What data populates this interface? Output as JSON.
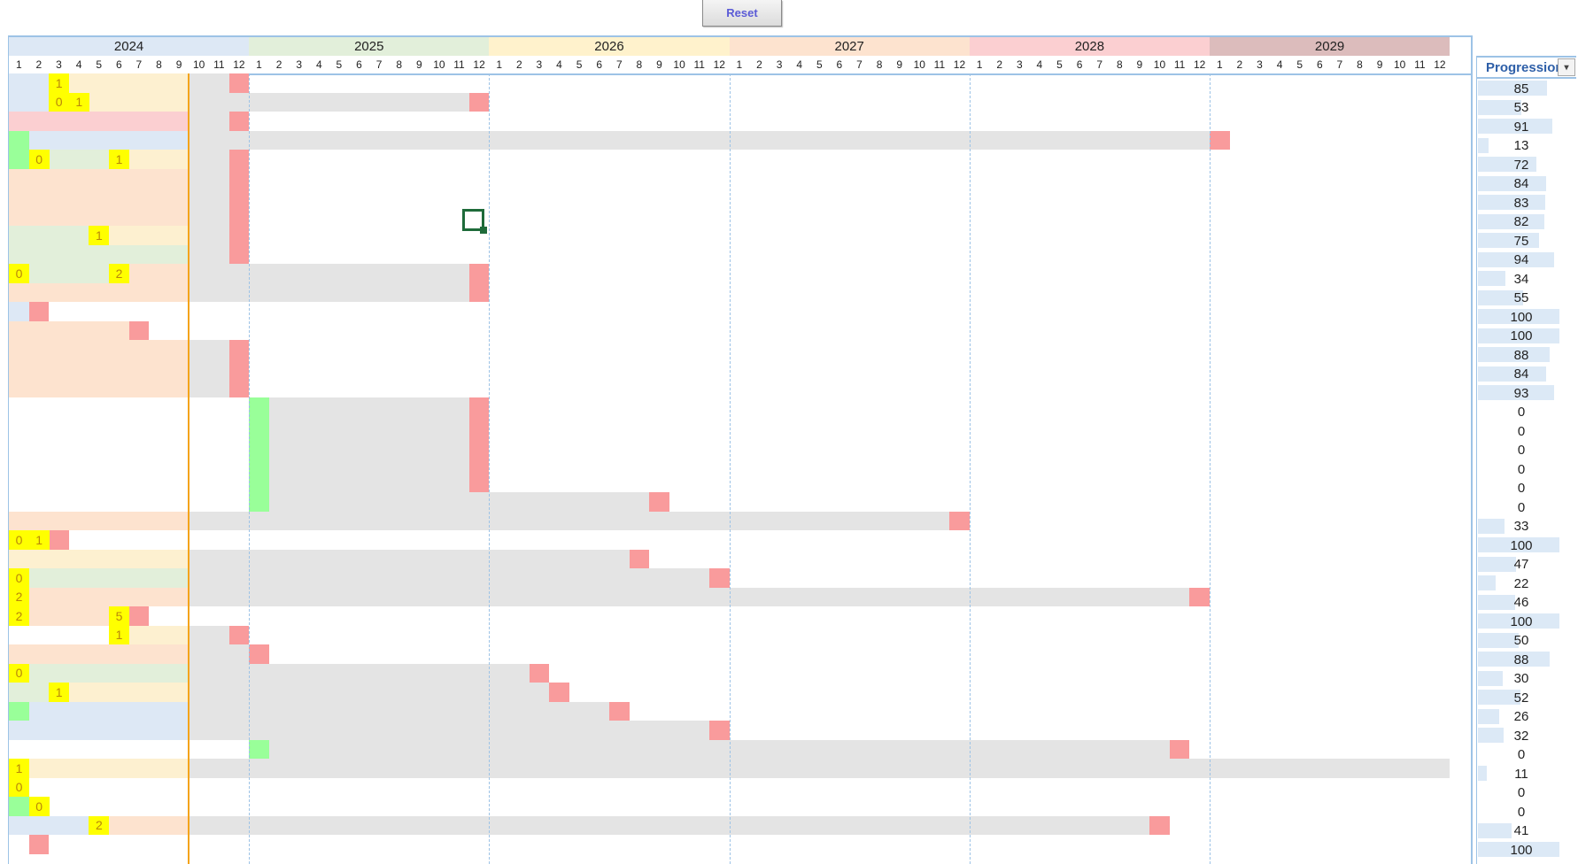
{
  "toolbar": {
    "reset_label": "Reset"
  },
  "colors": {
    "row_blue": "#dde8f5",
    "row_yellow": "#fdf0d0",
    "row_pink": "#fbcfd1",
    "row_green": "#e2efda",
    "row_orange": "#fde3cf",
    "gray": "#e4e4e4",
    "red": "#f99b9c",
    "lime": "#99ff99",
    "yellow": "#ffff00",
    "today": "#f4a41b"
  },
  "years": [
    {
      "label": "2024",
      "color": "#dde8f5"
    },
    {
      "label": "2025",
      "color": "#e2efda"
    },
    {
      "label": "2026",
      "color": "#fff2cc"
    },
    {
      "label": "2027",
      "color": "#fde3cf"
    },
    {
      "label": "2028",
      "color": "#fbcfd1"
    },
    {
      "label": "2029",
      "color": "#dcbcbc"
    }
  ],
  "months": [
    "1",
    "2",
    "3",
    "4",
    "5",
    "6",
    "7",
    "8",
    "9",
    "10",
    "11",
    "12"
  ],
  "today_month": 9,
  "progress_header": "Progression",
  "filter_icon": "▾",
  "rows": [
    {
      "progress": 85,
      "segs": [
        [
          "blue",
          0,
          2
        ],
        [
          "yellow",
          2,
          9
        ]
      ],
      "gray": [
        9,
        11
      ],
      "red": 11,
      "marks": [
        [
          2,
          "1"
        ]
      ]
    },
    {
      "progress": 53,
      "segs": [
        [
          "blue",
          0,
          2
        ],
        [
          "yellow",
          2,
          9
        ]
      ],
      "gray": [
        9,
        23
      ],
      "red": 23,
      "marks": [
        [
          2,
          "0"
        ],
        [
          3,
          "1"
        ]
      ]
    },
    {
      "progress": 91,
      "segs": [
        [
          "pink",
          0,
          9
        ]
      ],
      "gray": [
        9,
        11
      ],
      "red": 11,
      "marks": []
    },
    {
      "progress": 13,
      "segs": [
        [
          "lime",
          0,
          1
        ],
        [
          "blue",
          1,
          9
        ]
      ],
      "gray": [
        9,
        60
      ],
      "red": 60,
      "marks": []
    },
    {
      "progress": 72,
      "segs": [
        [
          "lime",
          0,
          1
        ],
        [
          "green",
          1,
          5
        ],
        [
          "yellow",
          5,
          9
        ]
      ],
      "gray": [
        9,
        11
      ],
      "red": 11,
      "marks": [
        [
          1,
          "0"
        ],
        [
          5,
          "1"
        ]
      ]
    },
    {
      "progress": 84,
      "segs": [
        [
          "orange",
          0,
          9
        ]
      ],
      "gray": [
        9,
        11
      ],
      "red": 11,
      "marks": []
    },
    {
      "progress": 83,
      "segs": [
        [
          "orange",
          0,
          9
        ]
      ],
      "gray": [
        9,
        11
      ],
      "red": 11,
      "marks": []
    },
    {
      "progress": 82,
      "segs": [
        [
          "orange",
          0,
          9
        ]
      ],
      "gray": [
        9,
        11
      ],
      "red": 11,
      "marks": []
    },
    {
      "progress": 75,
      "segs": [
        [
          "green",
          0,
          4
        ],
        [
          "yellow",
          4,
          9
        ]
      ],
      "gray": [
        9,
        11
      ],
      "red": 11,
      "marks": [
        [
          4,
          "1"
        ]
      ]
    },
    {
      "progress": 94,
      "segs": [
        [
          "green",
          0,
          9
        ]
      ],
      "gray": [
        9,
        11
      ],
      "red": 11,
      "marks": []
    },
    {
      "progress": 34,
      "segs": [
        [
          "green",
          0,
          5
        ],
        [
          "orange",
          5,
          9
        ]
      ],
      "gray": [
        9,
        23
      ],
      "red": 23,
      "marks": [
        [
          0,
          "0"
        ],
        [
          5,
          "2"
        ]
      ]
    },
    {
      "progress": 55,
      "segs": [
        [
          "orange",
          0,
          9
        ]
      ],
      "gray": [
        9,
        23
      ],
      "red": 23,
      "marks": []
    },
    {
      "progress": 100,
      "segs": [
        [
          "blue",
          0,
          1
        ]
      ],
      "gray": null,
      "red": 1,
      "marks": []
    },
    {
      "progress": 100,
      "segs": [
        [
          "orange",
          0,
          6
        ]
      ],
      "gray": null,
      "red": 6,
      "marks": []
    },
    {
      "progress": 88,
      "segs": [
        [
          "orange",
          0,
          9
        ]
      ],
      "gray": [
        9,
        11
      ],
      "red": 11,
      "marks": []
    },
    {
      "progress": 84,
      "segs": [
        [
          "orange",
          0,
          9
        ]
      ],
      "gray": [
        9,
        11
      ],
      "red": 11,
      "marks": []
    },
    {
      "progress": 93,
      "segs": [
        [
          "orange",
          0,
          9
        ]
      ],
      "gray": [
        9,
        11
      ],
      "red": 11,
      "marks": []
    },
    {
      "progress": 0,
      "segs": [
        [
          "lime",
          12,
          13
        ]
      ],
      "gray": [
        13,
        23
      ],
      "red": 23,
      "marks": []
    },
    {
      "progress": 0,
      "segs": [
        [
          "lime",
          12,
          13
        ]
      ],
      "gray": [
        13,
        23
      ],
      "red": 23,
      "marks": []
    },
    {
      "progress": 0,
      "segs": [
        [
          "lime",
          12,
          13
        ]
      ],
      "gray": [
        13,
        23
      ],
      "red": 23,
      "marks": []
    },
    {
      "progress": 0,
      "segs": [
        [
          "lime",
          12,
          13
        ]
      ],
      "gray": [
        13,
        23
      ],
      "red": 23,
      "marks": []
    },
    {
      "progress": 0,
      "segs": [
        [
          "lime",
          12,
          13
        ]
      ],
      "gray": [
        13,
        23
      ],
      "red": 23,
      "marks": []
    },
    {
      "progress": 0,
      "segs": [
        [
          "lime",
          12,
          13
        ]
      ],
      "gray": [
        13,
        32
      ],
      "red": 32,
      "marks": []
    },
    {
      "progress": 33,
      "segs": [
        [
          "orange",
          0,
          9
        ]
      ],
      "gray": [
        9,
        47
      ],
      "red": 47,
      "marks": []
    },
    {
      "progress": 100,
      "segs": [],
      "gray": null,
      "red": 2,
      "marks": [
        [
          0,
          "0"
        ],
        [
          1,
          "1"
        ]
      ]
    },
    {
      "progress": 47,
      "segs": [
        [
          "yellow",
          0,
          9
        ]
      ],
      "gray": [
        9,
        31
      ],
      "red": 31,
      "marks": []
    },
    {
      "progress": 22,
      "segs": [
        [
          "green",
          0,
          9
        ]
      ],
      "gray": [
        9,
        35
      ],
      "red": 35,
      "marks": [
        [
          0,
          "0"
        ]
      ]
    },
    {
      "progress": 46,
      "segs": [
        [
          "orange",
          0,
          9
        ]
      ],
      "gray": [
        9,
        59
      ],
      "red": 59,
      "marks": [
        [
          0,
          "2"
        ]
      ]
    },
    {
      "progress": 100,
      "segs": [
        [
          "orange",
          0,
          6
        ]
      ],
      "gray": null,
      "red": 6,
      "marks": [
        [
          0,
          "2"
        ],
        [
          5,
          "5"
        ]
      ]
    },
    {
      "progress": 50,
      "segs": [
        [
          "yellow",
          5,
          9
        ]
      ],
      "gray": [
        9,
        11
      ],
      "red": 11,
      "marks": [
        [
          5,
          "1"
        ]
      ]
    },
    {
      "progress": 88,
      "segs": [
        [
          "orange",
          0,
          9
        ]
      ],
      "gray": [
        9,
        12
      ],
      "red": 12,
      "marks": []
    },
    {
      "progress": 30,
      "segs": [
        [
          "green",
          0,
          9
        ]
      ],
      "gray": [
        9,
        26
      ],
      "red": 26,
      "marks": [
        [
          0,
          "0"
        ]
      ]
    },
    {
      "progress": 52,
      "segs": [
        [
          "green",
          0,
          2
        ],
        [
          "yellow",
          2,
          9
        ]
      ],
      "gray": [
        9,
        27
      ],
      "red": 27,
      "marks": [
        [
          2,
          "1"
        ]
      ]
    },
    {
      "progress": 26,
      "segs": [
        [
          "lime",
          0,
          1
        ],
        [
          "blue",
          1,
          9
        ]
      ],
      "gray": [
        9,
        30
      ],
      "red": 30,
      "marks": []
    },
    {
      "progress": 32,
      "segs": [
        [
          "blue",
          0,
          9
        ]
      ],
      "gray": [
        9,
        35
      ],
      "red": 35,
      "marks": []
    },
    {
      "progress": 0,
      "segs": [
        [
          "lime",
          12,
          13
        ]
      ],
      "gray": [
        13,
        58
      ],
      "red": 58,
      "marks": []
    },
    {
      "progress": 11,
      "segs": [
        [
          "yellow",
          0,
          9
        ]
      ],
      "gray": [
        9,
        72
      ],
      "red": null,
      "marks": [
        [
          0,
          "1"
        ]
      ]
    },
    {
      "progress": 0,
      "segs": [],
      "gray": null,
      "red": null,
      "marks": [
        [
          0,
          "0"
        ]
      ]
    },
    {
      "progress": 0,
      "segs": [
        [
          "lime",
          0,
          1
        ]
      ],
      "gray": null,
      "red": null,
      "marks": [
        [
          1,
          "0"
        ]
      ]
    },
    {
      "progress": 41,
      "segs": [
        [
          "blue",
          0,
          4
        ],
        [
          "orange",
          4,
          9
        ]
      ],
      "gray": [
        9,
        57
      ],
      "red": 57,
      "marks": [
        [
          4,
          "2"
        ]
      ]
    },
    {
      "progress": 100,
      "segs": [],
      "gray": null,
      "red": 1,
      "marks": []
    }
  ]
}
